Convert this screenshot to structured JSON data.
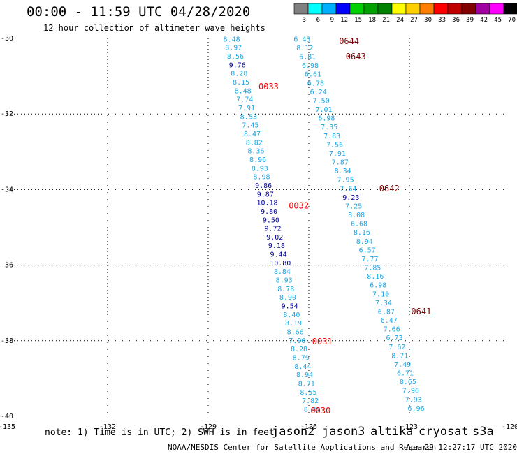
{
  "header": {
    "title": "00:00 - 11:59 UTC 04/28/2020",
    "subtitle": "12 hour collection of altimeter wave heights"
  },
  "legend": {
    "unit": "(ft)",
    "bins": [
      {
        "label": "3",
        "color": "#808080"
      },
      {
        "label": "6",
        "color": "#00ffff"
      },
      {
        "label": "9",
        "color": "#00b0ff"
      },
      {
        "label": "12",
        "color": "#0000ff"
      },
      {
        "label": "15",
        "color": "#00d000"
      },
      {
        "label": "18",
        "color": "#00a000"
      },
      {
        "label": "21",
        "color": "#008000"
      },
      {
        "label": "24",
        "color": "#ffff00"
      },
      {
        "label": "27",
        "color": "#ffd000"
      },
      {
        "label": "30",
        "color": "#ff8000"
      },
      {
        "label": "33",
        "color": "#ff0000"
      },
      {
        "label": "36",
        "color": "#c00000"
      },
      {
        "label": "39",
        "color": "#800000"
      },
      {
        "label": "42",
        "color": "#a000a0"
      },
      {
        "label": "45",
        "color": "#ff00ff"
      },
      {
        "label": "70",
        "color": "#000000"
      }
    ]
  },
  "map": {
    "lon_range": [
      -135,
      -120
    ],
    "lat_range": [
      -40,
      -30
    ],
    "lon_ticks": [
      {
        "value": -135,
        "label": "-135"
      },
      {
        "value": -132,
        "label": "-132"
      },
      {
        "value": -129,
        "label": "-129"
      },
      {
        "value": -126,
        "label": "-126"
      },
      {
        "value": -123,
        "label": "-123"
      },
      {
        "value": -120,
        "label": "-120"
      }
    ],
    "lat_ticks": [
      {
        "value": -30,
        "label": "-30"
      },
      {
        "value": -32,
        "label": "-32"
      },
      {
        "value": -34,
        "label": "-34"
      },
      {
        "value": -36,
        "label": "-36"
      },
      {
        "value": -38,
        "label": "-38"
      },
      {
        "value": -40,
        "label": "-40"
      }
    ],
    "colors": {
      "light": "#1aa7e6",
      "dark": "#00009a",
      "time_red": "#ee0000",
      "time_maroon": "#7a0000"
    },
    "tracks": [
      {
        "name": "track-a",
        "start": {
          "lon": -128.3,
          "lat": -30.08
        },
        "end": {
          "lon": -125.9,
          "lat": -39.88
        },
        "values": [
          {
            "v": "8.48",
            "c": "light"
          },
          {
            "v": "8.97",
            "c": "light"
          },
          {
            "v": "8.56",
            "c": "light"
          },
          {
            "v": "9.76",
            "c": "dark"
          },
          {
            "v": "8.28",
            "c": "light"
          },
          {
            "v": "8.15",
            "c": "light"
          },
          {
            "v": "8.48",
            "c": "light"
          },
          {
            "v": "7.74",
            "c": "light"
          },
          {
            "v": "7.91",
            "c": "light"
          },
          {
            "v": "8.53",
            "c": "light"
          },
          {
            "v": "7.45",
            "c": "light"
          },
          {
            "v": "8.47",
            "c": "light"
          },
          {
            "v": "8.82",
            "c": "light"
          },
          {
            "v": "8.36",
            "c": "light"
          },
          {
            "v": "8.96",
            "c": "light"
          },
          {
            "v": "8.93",
            "c": "light"
          },
          {
            "v": "8.98",
            "c": "light"
          },
          {
            "v": "9.86",
            "c": "dark"
          },
          {
            "v": "9.87",
            "c": "dark"
          },
          {
            "v": "10.18",
            "c": "dark"
          },
          {
            "v": "9.80",
            "c": "dark"
          },
          {
            "v": "9.50",
            "c": "dark"
          },
          {
            "v": "9.72",
            "c": "dark"
          },
          {
            "v": "9.02",
            "c": "dark"
          },
          {
            "v": "9.18",
            "c": "dark"
          },
          {
            "v": "9.44",
            "c": "dark"
          },
          {
            "v": "10.80",
            "c": "dark"
          },
          {
            "v": "8.84",
            "c": "light"
          },
          {
            "v": "8.93",
            "c": "light"
          },
          {
            "v": "8.78",
            "c": "light"
          },
          {
            "v": "8.90",
            "c": "light"
          },
          {
            "v": "9.54",
            "c": "dark"
          },
          {
            "v": "8.40",
            "c": "light"
          },
          {
            "v": "8.19",
            "c": "light"
          },
          {
            "v": "8.66",
            "c": "light"
          },
          {
            "v": "7.90",
            "c": "light"
          },
          {
            "v": "8.28",
            "c": "light"
          },
          {
            "v": "8.79",
            "c": "light"
          },
          {
            "v": "8.44",
            "c": "light"
          },
          {
            "v": "8.94",
            "c": "light"
          },
          {
            "v": "8.71",
            "c": "light"
          },
          {
            "v": "8.55",
            "c": "light"
          },
          {
            "v": "7.82",
            "c": "light"
          },
          {
            "v": "8.45",
            "c": "light"
          }
        ]
      },
      {
        "name": "track-b",
        "start": {
          "lon": -126.2,
          "lat": -30.08
        },
        "end": {
          "lon": -122.8,
          "lat": -39.85
        },
        "values": [
          {
            "v": "6.43",
            "c": "light"
          },
          {
            "v": "8.12",
            "c": "light"
          },
          {
            "v": "6.81",
            "c": "light"
          },
          {
            "v": "6.98",
            "c": "light"
          },
          {
            "v": "6.61",
            "c": "light"
          },
          {
            "v": "6.78",
            "c": "light"
          },
          {
            "v": "6.24",
            "c": "light"
          },
          {
            "v": "7.50",
            "c": "light"
          },
          {
            "v": "7.01",
            "c": "light"
          },
          {
            "v": "6.98",
            "c": "light"
          },
          {
            "v": "7.35",
            "c": "light"
          },
          {
            "v": "7.83",
            "c": "light"
          },
          {
            "v": "7.56",
            "c": "light"
          },
          {
            "v": "7.91",
            "c": "light"
          },
          {
            "v": "7.87",
            "c": "light"
          },
          {
            "v": "8.34",
            "c": "light"
          },
          {
            "v": "7.95",
            "c": "light"
          },
          {
            "v": "7.64",
            "c": "light"
          },
          {
            "v": "9.23",
            "c": "dark"
          },
          {
            "v": "7.25",
            "c": "light"
          },
          {
            "v": "8.08",
            "c": "light"
          },
          {
            "v": "6.68",
            "c": "light"
          },
          {
            "v": "8.16",
            "c": "light"
          },
          {
            "v": "8.94",
            "c": "light"
          },
          {
            "v": "6.57",
            "c": "light"
          },
          {
            "v": "7.77",
            "c": "light"
          },
          {
            "v": "7.85",
            "c": "light"
          },
          {
            "v": "8.16",
            "c": "light"
          },
          {
            "v": "6.98",
            "c": "light"
          },
          {
            "v": "7.10",
            "c": "light"
          },
          {
            "v": "7.34",
            "c": "light"
          },
          {
            "v": "6.87",
            "c": "light"
          },
          {
            "v": "6.47",
            "c": "light"
          },
          {
            "v": "7.66",
            "c": "light"
          },
          {
            "v": "6.73",
            "c": "light"
          },
          {
            "v": "7.62",
            "c": "light"
          },
          {
            "v": "8.71",
            "c": "light"
          },
          {
            "v": "7.49",
            "c": "light"
          },
          {
            "v": "6.71",
            "c": "light"
          },
          {
            "v": "8.65",
            "c": "light"
          },
          {
            "v": "7.96",
            "c": "light"
          },
          {
            "v": "7.93",
            "c": "light"
          },
          {
            "v": "6.96",
            "c": "light"
          }
        ]
      }
    ],
    "time_labels": [
      {
        "text": "0644",
        "lon": -125.1,
        "lat": -30.15,
        "c": "time_maroon"
      },
      {
        "text": "0643",
        "lon": -124.9,
        "lat": -30.55,
        "c": "time_maroon"
      },
      {
        "text": "0033",
        "lon": -127.5,
        "lat": -31.35,
        "c": "time_red"
      },
      {
        "text": "0642",
        "lon": -123.9,
        "lat": -34.05,
        "c": "time_maroon"
      },
      {
        "text": "0032",
        "lon": -126.6,
        "lat": -34.5,
        "c": "time_red"
      },
      {
        "text": "0641",
        "lon": -122.95,
        "lat": -37.3,
        "c": "time_maroon"
      },
      {
        "text": "0031",
        "lon": -125.9,
        "lat": -38.1,
        "c": "time_red"
      },
      {
        "text": "0030",
        "lon": -125.95,
        "lat": -39.93,
        "c": "time_red"
      }
    ]
  },
  "note": "note: 1) Time is in UTC; 2) SWH is in feet",
  "satellites": [
    {
      "name": "jason2",
      "color": "#0000ff"
    },
    {
      "name": "jason3",
      "color": "#00a000"
    },
    {
      "name": "altika",
      "color": "#ff9000"
    },
    {
      "name": "cryosat",
      "color": "#ff0000"
    },
    {
      "name": "s3a",
      "color": "#800000"
    }
  ],
  "footer": {
    "credit": "NOAA/NESDIS Center for Satellite Applications and Research",
    "timestamp": "Apr 29 12:27:17 UTC 2020"
  }
}
